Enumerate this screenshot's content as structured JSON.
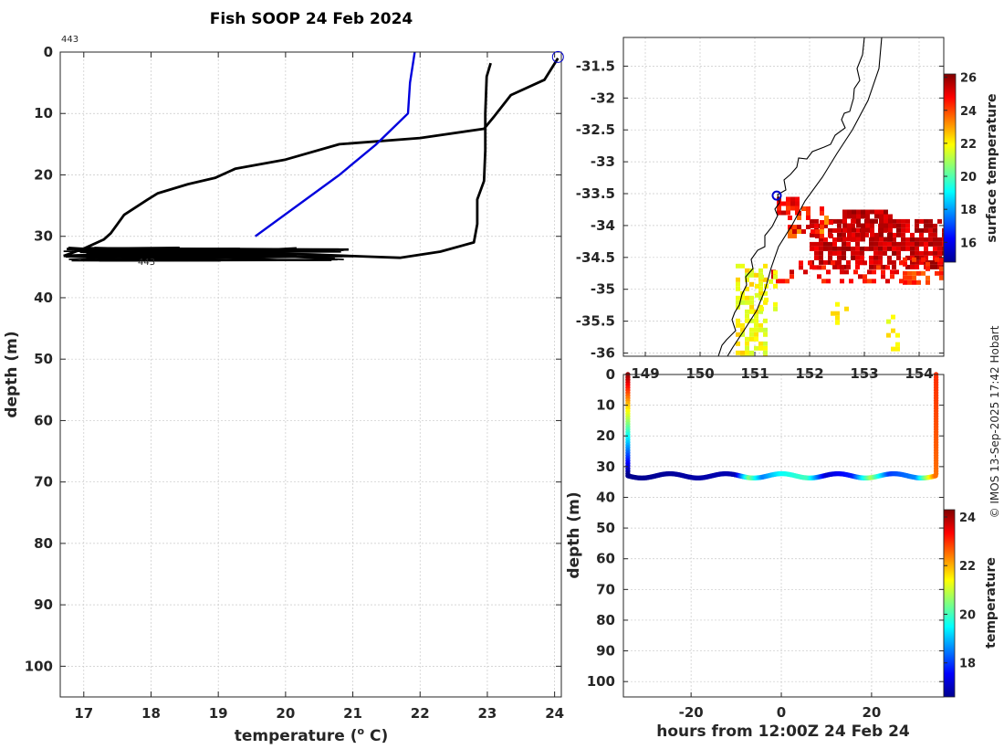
{
  "title": "Fish SOOP 24 Feb 2024",
  "watermark": "© IMOS 13-Sep-2025 17:42 Hobart",
  "panel_left": {
    "xlabel": "temperature (",
    "xlabel_sup": "o",
    "xlabel_end": " C)",
    "ylabel": "depth (m)",
    "annotation_top": "443",
    "annotation_mid": "443"
  },
  "panel_map": {
    "colorbar_label": "surface temperature",
    "colorbar_ticks": [
      "16",
      "18",
      "20",
      "22",
      "24",
      "26"
    ]
  },
  "panel_section": {
    "xlabel": "hours from 12:00Z 24 Feb 24",
    "ylabel": "depth (m)",
    "colorbar_label": "temperature",
    "colorbar_ticks": [
      "18",
      "20",
      "22",
      "24"
    ]
  },
  "colors": {
    "profile_line": "#000000",
    "surface_line": "#0000dd",
    "grid": "#d0d0d0",
    "coast": "#000000",
    "marker": "#0000cc"
  },
  "chart_data": [
    {
      "type": "line",
      "panel": "profile",
      "xlim": [
        16.65,
        24.1
      ],
      "ylim": [
        0,
        105
      ],
      "y_reversed": true,
      "grid": true,
      "xticks": [
        "17",
        "18",
        "19",
        "20",
        "21",
        "22",
        "23",
        "24"
      ],
      "yticks": [
        "0",
        "10",
        "20",
        "30",
        "40",
        "50",
        "60",
        "70",
        "80",
        "90",
        "100"
      ],
      "series": [
        {
          "role": "descent-ascent profile",
          "points": [
            [
              24.05,
              1
            ],
            [
              23.85,
              4.5
            ],
            [
              23.35,
              7
            ],
            [
              23.1,
              10.5
            ],
            [
              22.95,
              12.5
            ],
            [
              22.0,
              14
            ],
            [
              20.8,
              15
            ],
            [
              20.0,
              17.5
            ],
            [
              19.25,
              19
            ],
            [
              18.95,
              20.5
            ],
            [
              18.55,
              21.5
            ],
            [
              18.1,
              23
            ],
            [
              17.95,
              24
            ],
            [
              17.6,
              26.5
            ],
            [
              17.4,
              29.5
            ],
            [
              17.3,
              30.5
            ],
            [
              17.0,
              32
            ],
            [
              16.7,
              33.2
            ]
          ]
        },
        {
          "role": "bottom return",
          "points": [
            [
              16.7,
              33.2
            ],
            [
              17.3,
              33.0
            ],
            [
              18.5,
              32.8
            ],
            [
              19.5,
              32.8
            ],
            [
              20.5,
              33.0
            ],
            [
              21.2,
              33.3
            ],
            [
              21.7,
              33.5
            ],
            [
              22.3,
              32.5
            ],
            [
              22.8,
              31.0
            ],
            [
              22.85,
              28
            ],
            [
              22.85,
              24
            ],
            [
              22.95,
              21
            ],
            [
              22.97,
              16
            ],
            [
              22.97,
              10
            ],
            [
              22.99,
              4
            ],
            [
              23.05,
              1.8
            ]
          ]
        },
        {
          "role": "bottom cluster",
          "x_range": [
            16.7,
            21.1
          ],
          "depth_range": [
            31.8,
            34.0
          ]
        },
        {
          "role": "surface trace",
          "points": [
            [
              21.92,
              0
            ],
            [
              21.85,
              5
            ],
            [
              21.82,
              10
            ],
            [
              21.35,
              15
            ],
            [
              20.8,
              20
            ],
            [
              19.55,
              30
            ]
          ]
        }
      ],
      "marker": {
        "x": 24.05,
        "depth": 0.8
      }
    },
    {
      "type": "heatmap",
      "panel": "map",
      "xlim": [
        148.6,
        154.45
      ],
      "ylim": [
        -36.05,
        -31.05
      ],
      "xticks": [
        "149",
        "150",
        "151",
        "152",
        "153",
        "154"
      ],
      "yticks": [
        "-31.5",
        "-32",
        "-32.5",
        "-33",
        "-33.5",
        "-34",
        "-34.5",
        "-35",
        "-35.5",
        "-36"
      ],
      "colorbar_range": [
        14.8,
        26.2
      ],
      "location_marker": {
        "lon": 151.4,
        "lat": -33.53
      }
    },
    {
      "type": "scatter",
      "panel": "section",
      "xlim": [
        -35,
        36
      ],
      "ylim": [
        0,
        105
      ],
      "y_reversed": true,
      "xticks": [
        "-20",
        "0",
        "20"
      ],
      "yticks": [
        "0",
        "10",
        "20",
        "30",
        "40",
        "50",
        "60",
        "70",
        "80",
        "90",
        "100"
      ],
      "colorbar_range": [
        16.6,
        24.3
      ],
      "descent": {
        "hour": -34,
        "depth_range": [
          0,
          32.5
        ],
        "temp_top": 24.2,
        "temp_bottom": 16.7
      },
      "ascent": {
        "hour": 34.3,
        "depth_range": [
          0,
          33
        ],
        "temp_top": 23.0,
        "temp_bottom": 22.5
      },
      "bottom_track": {
        "hour_range": [
          -34,
          34.3
        ],
        "depth_mean": 33.0,
        "depth_amplitude": 0.7,
        "period_hours": 12.4,
        "temps": [
          [
            -34,
            16.7
          ],
          [
            -10,
            17.0
          ],
          [
            -7,
            20.5
          ],
          [
            -4,
            18.5
          ],
          [
            0,
            19.5
          ],
          [
            6,
            20.0
          ],
          [
            10,
            17.2
          ],
          [
            16,
            17.8
          ],
          [
            20,
            20.8
          ],
          [
            24,
            18.0
          ],
          [
            30,
            18.6
          ],
          [
            34.3,
            22.6
          ]
        ]
      }
    }
  ]
}
